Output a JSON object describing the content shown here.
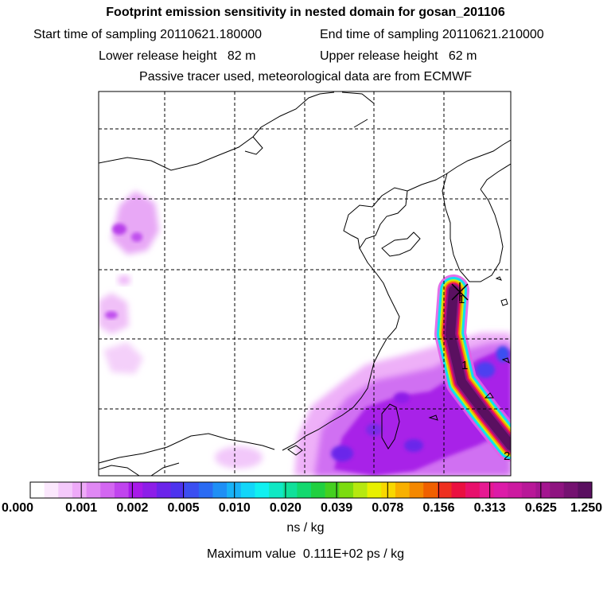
{
  "header": {
    "title": "Footprint emission sensitivity in nested domain for gosan_201106",
    "start_label": "Start time of sampling 20110621.180000",
    "end_label": "End time of sampling 20110621.210000",
    "lower_label": "Lower release height   82 m",
    "upper_label": "Upper release height   62 m",
    "info": "Passive tracer used, meteorological data are from ECMWF"
  },
  "map": {
    "site_marker": "x-cross-icon",
    "trajectory_labels": [
      "1",
      "1",
      "2"
    ],
    "grid": "dashed"
  },
  "colorbar": {
    "tick_labels": [
      "0.000",
      "0.001",
      "0.002",
      "0.005",
      "0.010",
      "0.020",
      "0.039",
      "0.078",
      "0.156",
      "0.313",
      "0.625",
      "1.250"
    ],
    "colors": [
      "#ffffff",
      "#fbe8fd",
      "#f4c9fb",
      "#eeaaf8",
      "#e088f4",
      "#d366f1",
      "#c044ee",
      "#a81ae9",
      "#8d1ee8",
      "#6b24ea",
      "#4d33ee",
      "#3b4ff1",
      "#2a6bf3",
      "#1f8ff5",
      "#18b2f7",
      "#12d6f9",
      "#10f0f0",
      "#10e8c4",
      "#10e09a",
      "#12d96e",
      "#20d040",
      "#44d020",
      "#7cdc10",
      "#b6e810",
      "#e8f000",
      "#f8d800",
      "#f8b000",
      "#f48800",
      "#f06000",
      "#ee3020",
      "#ea1040",
      "#e8106c",
      "#e61a92",
      "#dc1ba8",
      "#cc1aa0",
      "#b81898",
      "#a41690",
      "#8e1480",
      "#741270",
      "#5a1060"
    ],
    "unit": "ns / kg",
    "max_text": "Maximum value  0.111E+02 ps / kg"
  }
}
